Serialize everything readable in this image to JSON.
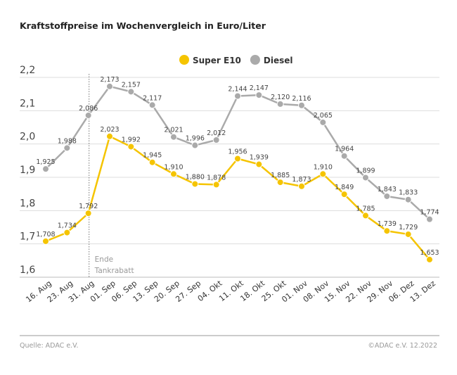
{
  "title": "Kraftstoffpreise im Wochenvergleich in Euro/Liter",
  "source": "Quelle: ADAC e.V.",
  "copyright": "©ADAC e.V.  12.2022",
  "chart_data": {
    "type": "line",
    "title": "Kraftstoffpreise im Wochenvergleich in Euro/Liter",
    "categories": [
      "16. Aug",
      "23. Aug",
      "31. Aug",
      "01. Sep",
      "06. Sep",
      "13. Sep",
      "20. Sep",
      "27. Sep",
      "04. Okt",
      "11. Okt",
      "18. Okt",
      "25. Okt",
      "01. Nov",
      "08. Nov",
      "15. Nov",
      "22. Nov",
      "29. Nov",
      "06. Dez",
      "13. Dez"
    ],
    "series": [
      {
        "name": "Super E10",
        "color": "#f5c400",
        "values": [
          1.708,
          1.734,
          1.792,
          2.023,
          1.992,
          1.945,
          1.91,
          1.88,
          1.878,
          1.956,
          1.939,
          1.885,
          1.873,
          1.91,
          1.849,
          1.785,
          1.739,
          1.729,
          1.653
        ],
        "labels": [
          "1,708",
          "1,734",
          "1,792",
          "2,023",
          "1,992",
          "1,945",
          "1,910",
          "1,880",
          "1,878",
          "1,956",
          "1,939",
          "1,885",
          "1,873",
          "1,910",
          "1,849",
          "1,785",
          "1,739",
          "1,729",
          "1,653"
        ]
      },
      {
        "name": "Diesel",
        "color": "#aaaaaa",
        "values": [
          1.925,
          1.988,
          2.086,
          2.173,
          2.157,
          2.117,
          2.021,
          1.996,
          2.012,
          2.144,
          2.147,
          2.12,
          2.116,
          2.065,
          1.964,
          1.899,
          1.843,
          1.833,
          1.774
        ],
        "labels": [
          "1,925",
          "1,988",
          "2,086",
          "2,173",
          "2,157",
          "2,117",
          "2,021",
          "1,996",
          "2,012",
          "2,144",
          "2,147",
          "2,120",
          "2,116",
          "2,065",
          "1,964",
          "1,899",
          "1,843",
          "1,833",
          "1,774"
        ]
      }
    ],
    "ylim": [
      1.6,
      2.2
    ],
    "yticks": [
      1.6,
      1.7,
      1.8,
      1.9,
      2.0,
      2.1,
      2.2
    ],
    "ytick_labels": [
      "1,6",
      "1,7",
      "1,8",
      "1,9",
      "2,0",
      "2,1",
      "2,2"
    ],
    "grid": true,
    "legend": "top-center",
    "annotation": {
      "category": "31. Aug",
      "lines": [
        "Ende",
        "Tankrabatt"
      ]
    }
  }
}
